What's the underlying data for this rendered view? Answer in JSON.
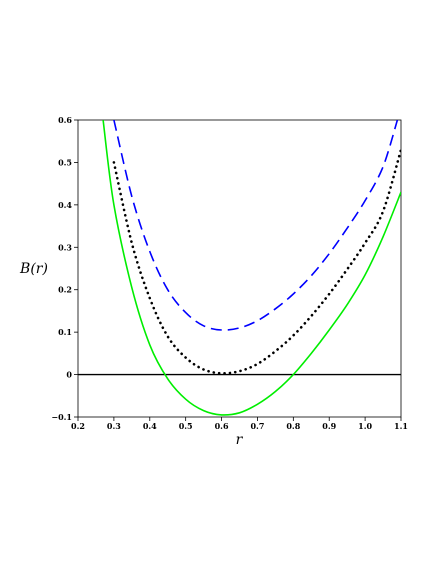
{
  "chart_data": {
    "type": "line",
    "title": "",
    "xlabel": "r",
    "ylabel": "B(r)",
    "xlim": [
      0.2,
      1.1
    ],
    "ylim": [
      -0.1,
      0.6
    ],
    "grid": false,
    "legend": "none",
    "x_ticks": [
      0.2,
      0.3,
      0.4,
      0.5,
      0.6,
      0.7,
      0.8,
      0.9,
      1.0,
      1.1
    ],
    "x_tick_labels": [
      "0.2",
      "0.3",
      "0.4",
      "0.5",
      "0.6",
      "0.7",
      "0.8",
      "0.9",
      "1.0",
      "1.1"
    ],
    "y_ticks": [
      -0.1,
      0,
      0.1,
      0.2,
      0.3,
      0.4,
      0.5,
      0.6
    ],
    "y_tick_labels": [
      "−0.1",
      "0",
      "0.1",
      "0.2",
      "0.3",
      "0.4",
      "0.5",
      "0.6"
    ],
    "reference_line": {
      "y": 0,
      "color": "#000000"
    },
    "series": [
      {
        "color": "#0000ff",
        "style": "dashed",
        "x": [
          0.3,
          0.35,
          0.4,
          0.45,
          0.5,
          0.55,
          0.6,
          0.65,
          0.7,
          0.75,
          0.8,
          0.85,
          0.9,
          0.95,
          1.0,
          1.05,
          1.09
        ],
        "y": [
          0.6,
          0.42,
          0.29,
          0.2,
          0.146,
          0.115,
          0.105,
          0.11,
          0.127,
          0.155,
          0.19,
          0.233,
          0.285,
          0.345,
          0.41,
          0.49,
          0.6
        ]
      },
      {
        "color": "#000000",
        "style": "dotted",
        "x": [
          0.3,
          0.35,
          0.4,
          0.45,
          0.5,
          0.55,
          0.6,
          0.65,
          0.7,
          0.75,
          0.8,
          0.85,
          0.9,
          0.95,
          1.0,
          1.05,
          1.1
        ],
        "y": [
          0.5,
          0.31,
          0.18,
          0.09,
          0.04,
          0.012,
          0.003,
          0.008,
          0.025,
          0.055,
          0.092,
          0.138,
          0.19,
          0.248,
          0.31,
          0.385,
          0.53
        ]
      },
      {
        "color": "#00ee00",
        "style": "solid",
        "x": [
          0.27,
          0.3,
          0.35,
          0.4,
          0.45,
          0.5,
          0.55,
          0.6,
          0.65,
          0.7,
          0.75,
          0.8,
          0.85,
          0.9,
          0.95,
          1.0,
          1.05,
          1.1
        ],
        "y": [
          0.6,
          0.4,
          0.205,
          0.07,
          -0.01,
          -0.058,
          -0.085,
          -0.095,
          -0.09,
          -0.07,
          -0.04,
          0.0,
          0.05,
          0.105,
          0.165,
          0.235,
          0.325,
          0.43
        ]
      }
    ]
  }
}
